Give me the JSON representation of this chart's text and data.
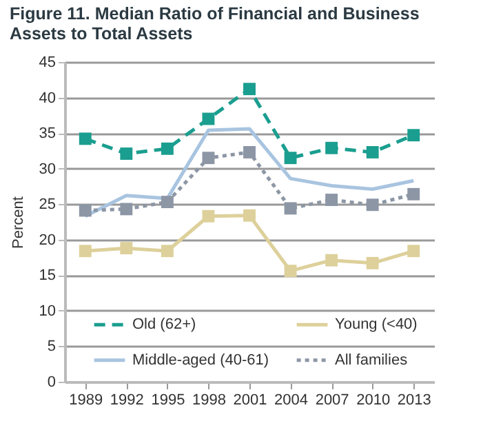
{
  "chart_data": {
    "type": "line",
    "title": "Figure 11. Median Ratio of Financial and Business Assets to Total Assets",
    "ylabel": "Percent",
    "categories": [
      "1989",
      "1992",
      "1995",
      "1998",
      "2001",
      "2004",
      "2007",
      "2010",
      "2013"
    ],
    "ylim": [
      0,
      45
    ],
    "yticks": [
      0,
      5,
      10,
      15,
      20,
      25,
      30,
      35,
      40,
      45
    ],
    "grid": "y",
    "legend": "bottom",
    "series": [
      {
        "name": "Old (62+)",
        "color": "#1a9e8f",
        "marker": "square",
        "line_style": "dashed",
        "values": [
          34.2,
          32.1,
          32.8,
          37.0,
          41.2,
          31.5,
          32.9,
          32.3,
          34.7
        ]
      },
      {
        "name": "Young (<40)",
        "color": "#ddd09a",
        "marker": "square",
        "line_style": "solid",
        "values": [
          18.4,
          18.8,
          18.4,
          23.3,
          23.4,
          15.6,
          17.1,
          16.7,
          18.4
        ]
      },
      {
        "name": "Middle-aged (40-61)",
        "color": "#a8c4e0",
        "marker": "none",
        "line_style": "solid",
        "values": [
          23.3,
          26.2,
          25.8,
          35.4,
          35.6,
          28.6,
          27.6,
          27.1,
          28.3
        ]
      },
      {
        "name": "All families",
        "color": "#8c96a5",
        "marker": "square",
        "line_style": "dotted",
        "values": [
          24.1,
          24.3,
          25.3,
          31.5,
          32.3,
          24.4,
          25.6,
          24.9,
          26.4
        ]
      }
    ]
  }
}
